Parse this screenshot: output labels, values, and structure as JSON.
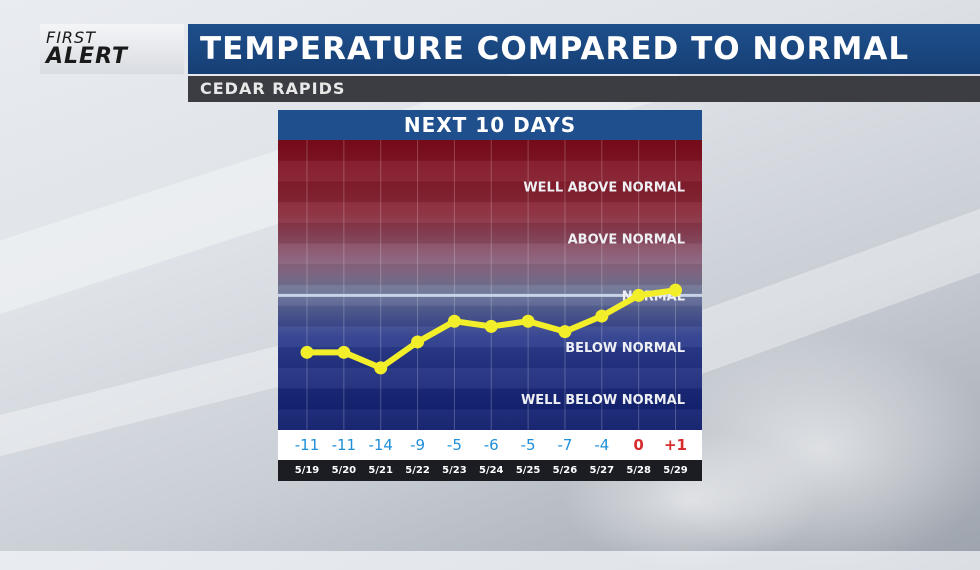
{
  "logo": {
    "line1": "FIRST",
    "line2": "ALERT"
  },
  "header": {
    "title": "TEMPERATURE COMPARED TO NORMAL",
    "location": "CEDAR RAPIDS"
  },
  "panel": {
    "title": "NEXT 10 DAYS"
  },
  "colors": {
    "accent_blue": "#1f4f8d",
    "line_yellow": "#f2ee2a",
    "negative_text": "#1e8fd8",
    "zero_text": "#d62c2c",
    "positive_text": "#d62c2c",
    "normal_line": "#c9d3e6"
  },
  "chart_data": {
    "type": "line",
    "title": "NEXT 10 DAYS",
    "categories": [
      "5/19",
      "5/20",
      "5/21",
      "5/22",
      "5/23",
      "5/24",
      "5/25",
      "5/26",
      "5/27",
      "5/28",
      "5/29"
    ],
    "series": [
      {
        "values": [
          -11,
          -11,
          -14,
          -9,
          -5,
          -6,
          -5,
          -7,
          -4,
          0,
          1
        ]
      }
    ],
    "value_labels": [
      "-11",
      "-11",
      "-14",
      "-9",
      "-5",
      "-6",
      "-5",
      "-7",
      "-4",
      "0",
      "+1"
    ],
    "ylim": [
      -26,
      30
    ],
    "normal_value": 0,
    "zones": [
      {
        "label": "WELL ABOVE NORMAL",
        "value": 21
      },
      {
        "label": "ABOVE NORMAL",
        "value": 11
      },
      {
        "label": "NORMAL",
        "value": 0
      },
      {
        "label": "BELOW NORMAL",
        "value": -10
      },
      {
        "label": "WELL BELOW NORMAL",
        "value": -20
      }
    ],
    "grid": "vertical"
  }
}
